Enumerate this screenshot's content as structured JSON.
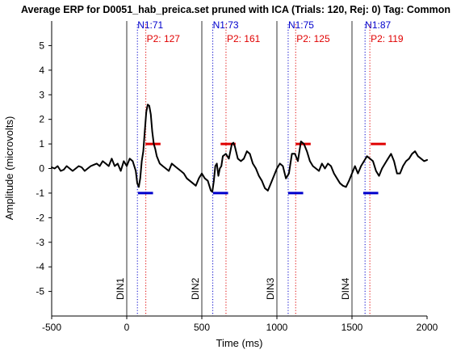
{
  "chart_data": {
    "type": "line",
    "title": "Average ERP for D0051_hab_preica.set pruned with ICA (Trials: 120, Rej: 0) Tag: Common",
    "xlabel": "Time (ms)",
    "ylabel": "Amplitude (microvolts)",
    "xlim": [
      -500,
      2000
    ],
    "ylim": [
      -6,
      6
    ],
    "xticks": [
      -500,
      0,
      500,
      1000,
      1500,
      2000
    ],
    "yticks": [
      5,
      4,
      3,
      2,
      1,
      0,
      -1,
      -2,
      -3,
      -4,
      -5
    ],
    "grid": false,
    "line_color": "#000000",
    "n1_color": "#0000cc",
    "p2_color": "#e00000",
    "series": [
      {
        "x": [
          -500,
          -480,
          -460,
          -440,
          -420,
          -400,
          -380,
          -360,
          -340,
          -320,
          -300,
          -280,
          -260,
          -240,
          -220,
          -200,
          -180,
          -160,
          -140,
          -120,
          -100,
          -80,
          -60,
          -40,
          -20,
          0,
          20,
          40,
          60,
          70,
          80,
          90,
          100,
          110,
          120,
          130,
          140,
          150,
          160,
          170,
          180,
          190,
          200,
          220,
          240,
          260,
          280,
          300,
          320,
          340,
          360,
          380,
          400,
          420,
          440,
          460,
          480,
          500,
          520,
          540,
          560,
          570,
          580,
          590,
          600,
          610,
          620,
          630,
          640,
          660,
          680,
          700,
          710,
          720,
          740,
          760,
          780,
          800,
          820,
          840,
          860,
          880,
          900,
          920,
          940,
          960,
          980,
          1000,
          1020,
          1040,
          1060,
          1080,
          1100,
          1120,
          1140,
          1160,
          1180,
          1200,
          1220,
          1240,
          1260,
          1280,
          1300,
          1320,
          1340,
          1360,
          1380,
          1400,
          1420,
          1440,
          1460,
          1480,
          1500,
          1520,
          1540,
          1560,
          1580,
          1600,
          1620,
          1640,
          1660,
          1680,
          1700,
          1720,
          1740,
          1760,
          1780,
          1800,
          1820,
          1840,
          1860,
          1880,
          1900,
          1920,
          1940,
          1960,
          1980,
          2000
        ],
        "values": [
          0.05,
          0.0,
          0.1,
          -0.1,
          -0.05,
          0.1,
          0.0,
          -0.1,
          0.0,
          0.1,
          0.05,
          -0.1,
          0.0,
          0.1,
          0.15,
          0.2,
          0.1,
          0.3,
          0.2,
          0.1,
          0.4,
          0.1,
          0.2,
          -0.1,
          0.3,
          0.1,
          0.4,
          0.3,
          -0.1,
          -0.6,
          -0.75,
          -0.4,
          0.3,
          0.7,
          1.5,
          2.3,
          2.6,
          2.55,
          2.2,
          1.5,
          1.0,
          0.8,
          0.5,
          0.2,
          0.1,
          0.0,
          -0.1,
          0.2,
          0.1,
          0.0,
          -0.1,
          -0.2,
          -0.4,
          -0.5,
          -0.6,
          -0.7,
          -0.4,
          -0.2,
          -0.4,
          -0.5,
          -0.9,
          -0.95,
          -0.5,
          0.1,
          0.2,
          -0.3,
          0.0,
          0.1,
          0.5,
          0.6,
          0.4,
          1.0,
          1.05,
          0.9,
          0.4,
          0.3,
          0.4,
          0.7,
          0.6,
          0.2,
          0.0,
          -0.3,
          -0.5,
          -0.8,
          -0.9,
          -0.6,
          -0.3,
          0.0,
          0.2,
          0.1,
          -0.4,
          -0.2,
          0.6,
          0.6,
          0.3,
          1.1,
          1.0,
          0.7,
          0.3,
          0.1,
          0.0,
          -0.1,
          0.2,
          0.0,
          0.2,
          0.1,
          -0.2,
          -0.4,
          -0.6,
          -0.7,
          -0.75,
          -0.5,
          -0.2,
          0.1,
          -0.2,
          0.1,
          0.3,
          0.5,
          0.4,
          0.3,
          -0.1,
          -0.3,
          0.0,
          0.2,
          0.4,
          0.6,
          0.3,
          -0.2,
          -0.2,
          0.1,
          0.3,
          0.4,
          0.6,
          0.7,
          0.5,
          0.4,
          0.3,
          0.35
        ]
      }
    ],
    "events": [
      {
        "label": "DIN1",
        "x": 0
      },
      {
        "label": "DIN2",
        "x": 500
      },
      {
        "label": "DIN3",
        "x": 1000
      },
      {
        "label": "DIN4",
        "x": 1500
      }
    ],
    "n1_markers": [
      {
        "label": "N1:71",
        "x": 71,
        "window": [
          75,
          175
        ],
        "y": -1
      },
      {
        "label": "N1:73",
        "x": 573,
        "window": [
          575,
          675
        ],
        "y": -1
      },
      {
        "label": "N1:75",
        "x": 1075,
        "window": [
          1075,
          1175
        ],
        "y": -1
      },
      {
        "label": "N1:87",
        "x": 1587,
        "window": [
          1575,
          1675
        ],
        "y": -1
      }
    ],
    "p2_markers": [
      {
        "label": "P2: 127",
        "x": 127,
        "window": [
          125,
          225
        ],
        "y": 1
      },
      {
        "label": "P2: 161",
        "x": 661,
        "window": [
          625,
          725
        ],
        "y": 1
      },
      {
        "label": "P2: 125",
        "x": 1125,
        "window": [
          1125,
          1225
        ],
        "y": 1
      },
      {
        "label": "P2: 119",
        "x": 1619,
        "window": [
          1625,
          1725
        ],
        "y": 1
      }
    ]
  }
}
